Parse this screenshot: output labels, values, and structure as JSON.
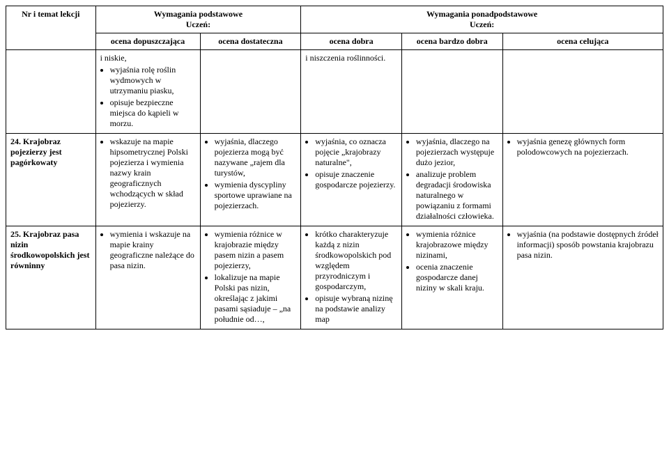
{
  "header": {
    "col1_l1": "Nr i temat lekcji",
    "basic_l1": "Wymagania podstawowe",
    "basic_l2": "Uczeń:",
    "adv_l1": "Wymagania ponadpodstawowe",
    "adv_l2": "Uczeń:",
    "grade1": "ocena dopuszczająca",
    "grade2": "ocena dostateczna",
    "grade3": "ocena dobra",
    "grade4": "ocena bardzo dobra",
    "grade5": "ocena celująca"
  },
  "row_cont": {
    "c2_li1": "i niskie,",
    "c2_li2": "wyjaśnia rolę roślin wydmowych w utrzymaniu piasku,",
    "c2_li3": "opisuje bezpieczne miejsca do kąpieli w morzu.",
    "c4_li1": "i niszczenia roślinności."
  },
  "row24": {
    "title": "24. Krajobraz pojezierzy jest pagórkowaty",
    "c2_li1": "wskazuje na mapie hipsometrycznej Polski pojezierza i wymienia nazwy krain geograficznych wchodzących w skład pojezierzy.",
    "c3_li1": "wyjaśnia, dlaczego pojezierza mogą być nazywane „rajem dla turystów,",
    "c3_li2": "wymienia dyscypliny sportowe uprawiane na pojezierzach.",
    "c4_li1": "wyjaśnia, co oznacza pojęcie „krajobrazy naturalne\",",
    "c4_li2": "opisuje znaczenie gospodarcze pojezierzy.",
    "c5_li1": "wyjaśnia, dlaczego na pojezierzach występuje dużo jezior,",
    "c5_li2": "analizuje problem degradacji środowiska naturalnego w powiązaniu z formami działalności człowieka.",
    "c6_li1": "wyjaśnia genezę głównych form polodowcowych na pojezierzach."
  },
  "row25": {
    "title": "25. Krajobraz pasa nizin środkowopolskich jest równinny",
    "c2_li1": "wymienia i wskazuje na mapie krainy geograficzne należące do pasa nizin.",
    "c3_li1": "wymienia różnice w krajobrazie między pasem nizin a pasem pojezierzy,",
    "c3_li2": "lokalizuje na mapie Polski pas nizin, określając z jakimi pasami sąsiaduje – „na południe od…,",
    "c4_li1": "krótko charakteryzuje każdą z nizin środkowopolskich pod względem przyrodniczym i gospodarczym,",
    "c4_li2": "opisuje wybraną nizinę na podstawie analizy map",
    "c5_li1": "wymienia różnice krajobrazowe między nizinami,",
    "c5_li2": "ocenia znaczenie gospodarcze danej niziny w skali kraju.",
    "c6_li1": "wyjaśnia (na podstawie dostępnych źródeł informacji) sposób powstania krajobrazu pasa nizin."
  }
}
